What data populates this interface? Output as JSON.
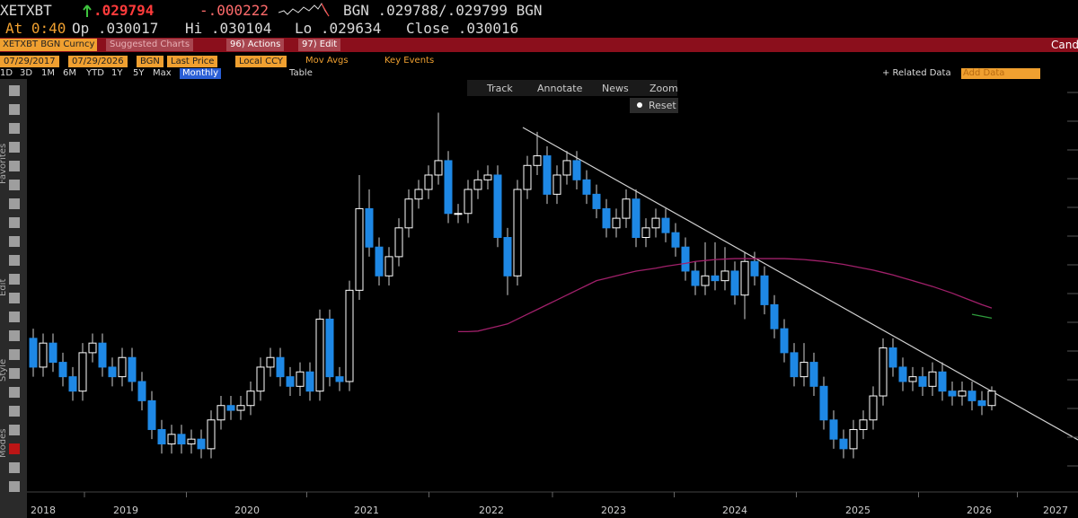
{
  "quote": {
    "ticker": "XETXBT",
    "last": ".029794",
    "change": "-.000222",
    "bid_ask": "BGN .029788/.029799 BGN",
    "time": "At 0:40",
    "open": "Op .030017",
    "high": "Hi .030104",
    "low": "Lo .029634",
    "close": "Close .030016"
  },
  "menu": {
    "security": "XETXBT BGN Curncy",
    "suggested": "Suggested Charts",
    "actions": "96) Actions",
    "edit": "97) Edit",
    "right": "Cand"
  },
  "settings": {
    "start": "07/29/2017",
    "end": "07/29/2026",
    "source": "BGN",
    "field": "Last Price",
    "currency": "Local CCY",
    "mov_avgs": "Mov Avgs",
    "key_events": "Key Events"
  },
  "periods": [
    "1D",
    "3D",
    "1M",
    "6M",
    "YTD",
    "1Y",
    "5Y",
    "Max"
  ],
  "frequency": "Monthly",
  "table": "Table",
  "related": "+ Related Data",
  "add_data": "Add Data",
  "chart_tools": [
    "Track",
    "Annotate",
    "News",
    "Zoom"
  ],
  "reset": "Reset",
  "side_tabs": [
    "Favorites",
    "Edit",
    "Style",
    "Modes"
  ],
  "chart_data": {
    "type": "candlestick",
    "up_color": "#ffffff",
    "down_color": "#1e88e5",
    "ylim": [
      0.009,
      0.095
    ],
    "x_labels": [
      "2018",
      "2019",
      "2020",
      "2021",
      "2022",
      "2023",
      "2024",
      "2025",
      "2026",
      "2027"
    ],
    "ohlc": [
      [
        0.041,
        0.043,
        0.033,
        0.035
      ],
      [
        0.035,
        0.042,
        0.033,
        0.04
      ],
      [
        0.04,
        0.042,
        0.034,
        0.036
      ],
      [
        0.036,
        0.038,
        0.031,
        0.033
      ],
      [
        0.033,
        0.035,
        0.028,
        0.03
      ],
      [
        0.03,
        0.04,
        0.028,
        0.038
      ],
      [
        0.038,
        0.042,
        0.036,
        0.04
      ],
      [
        0.04,
        0.042,
        0.033,
        0.035
      ],
      [
        0.035,
        0.037,
        0.031,
        0.033
      ],
      [
        0.033,
        0.039,
        0.031,
        0.037
      ],
      [
        0.037,
        0.039,
        0.03,
        0.032
      ],
      [
        0.032,
        0.034,
        0.026,
        0.028
      ],
      [
        0.028,
        0.03,
        0.02,
        0.022
      ],
      [
        0.022,
        0.024,
        0.017,
        0.019
      ],
      [
        0.019,
        0.023,
        0.017,
        0.021
      ],
      [
        0.021,
        0.023,
        0.017,
        0.019
      ],
      [
        0.019,
        0.022,
        0.017,
        0.02
      ],
      [
        0.02,
        0.022,
        0.016,
        0.018
      ],
      [
        0.018,
        0.026,
        0.016,
        0.024
      ],
      [
        0.024,
        0.029,
        0.022,
        0.027
      ],
      [
        0.027,
        0.029,
        0.024,
        0.026
      ],
      [
        0.026,
        0.029,
        0.024,
        0.027
      ],
      [
        0.027,
        0.032,
        0.025,
        0.03
      ],
      [
        0.03,
        0.037,
        0.028,
        0.035
      ],
      [
        0.035,
        0.039,
        0.033,
        0.037
      ],
      [
        0.037,
        0.039,
        0.031,
        0.033
      ],
      [
        0.033,
        0.035,
        0.029,
        0.031
      ],
      [
        0.031,
        0.036,
        0.029,
        0.034
      ],
      [
        0.034,
        0.036,
        0.028,
        0.03
      ],
      [
        0.03,
        0.047,
        0.028,
        0.045
      ],
      [
        0.045,
        0.047,
        0.031,
        0.033
      ],
      [
        0.033,
        0.035,
        0.03,
        0.032
      ],
      [
        0.032,
        0.053,
        0.03,
        0.051
      ],
      [
        0.051,
        0.075,
        0.049,
        0.068
      ],
      [
        0.068,
        0.072,
        0.058,
        0.06
      ],
      [
        0.06,
        0.062,
        0.052,
        0.054
      ],
      [
        0.054,
        0.06,
        0.052,
        0.058
      ],
      [
        0.058,
        0.066,
        0.056,
        0.064
      ],
      [
        0.064,
        0.072,
        0.062,
        0.07
      ],
      [
        0.07,
        0.074,
        0.068,
        0.072
      ],
      [
        0.072,
        0.077,
        0.07,
        0.075
      ],
      [
        0.075,
        0.088,
        0.073,
        0.078
      ],
      [
        0.078,
        0.08,
        0.065,
        0.067
      ],
      [
        0.067,
        0.069,
        0.065,
        0.067
      ],
      [
        0.067,
        0.074,
        0.065,
        0.072
      ],
      [
        0.072,
        0.076,
        0.07,
        0.074
      ],
      [
        0.074,
        0.077,
        0.072,
        0.075
      ],
      [
        0.075,
        0.077,
        0.06,
        0.062
      ],
      [
        0.062,
        0.064,
        0.05,
        0.054
      ],
      [
        0.054,
        0.074,
        0.052,
        0.072
      ],
      [
        0.072,
        0.079,
        0.07,
        0.077
      ],
      [
        0.077,
        0.084,
        0.075,
        0.079
      ],
      [
        0.079,
        0.081,
        0.069,
        0.071
      ],
      [
        0.071,
        0.077,
        0.069,
        0.075
      ],
      [
        0.075,
        0.08,
        0.073,
        0.078
      ],
      [
        0.078,
        0.08,
        0.072,
        0.074
      ],
      [
        0.074,
        0.076,
        0.069,
        0.071
      ],
      [
        0.071,
        0.073,
        0.066,
        0.068
      ],
      [
        0.068,
        0.07,
        0.062,
        0.064
      ],
      [
        0.064,
        0.068,
        0.062,
        0.066
      ],
      [
        0.066,
        0.072,
        0.064,
        0.07
      ],
      [
        0.07,
        0.072,
        0.06,
        0.062
      ],
      [
        0.062,
        0.066,
        0.06,
        0.064
      ],
      [
        0.064,
        0.068,
        0.062,
        0.066
      ],
      [
        0.066,
        0.068,
        0.061,
        0.063
      ],
      [
        0.063,
        0.065,
        0.058,
        0.06
      ],
      [
        0.06,
        0.062,
        0.053,
        0.055
      ],
      [
        0.055,
        0.057,
        0.05,
        0.052
      ],
      [
        0.052,
        0.061,
        0.05,
        0.054
      ],
      [
        0.054,
        0.061,
        0.051,
        0.053
      ],
      [
        0.053,
        0.06,
        0.051,
        0.055
      ],
      [
        0.055,
        0.057,
        0.048,
        0.05
      ],
      [
        0.05,
        0.059,
        0.045,
        0.057
      ],
      [
        0.057,
        0.059,
        0.052,
        0.054
      ],
      [
        0.054,
        0.056,
        0.046,
        0.048
      ],
      [
        0.048,
        0.05,
        0.041,
        0.043
      ],
      [
        0.043,
        0.045,
        0.036,
        0.038
      ],
      [
        0.038,
        0.04,
        0.031,
        0.033
      ],
      [
        0.033,
        0.04,
        0.031,
        0.036
      ],
      [
        0.036,
        0.038,
        0.029,
        0.031
      ],
      [
        0.031,
        0.033,
        0.022,
        0.024
      ],
      [
        0.024,
        0.026,
        0.018,
        0.02
      ],
      [
        0.02,
        0.022,
        0.016,
        0.018
      ],
      [
        0.018,
        0.024,
        0.016,
        0.022
      ],
      [
        0.022,
        0.026,
        0.02,
        0.024
      ],
      [
        0.024,
        0.031,
        0.022,
        0.029
      ],
      [
        0.029,
        0.041,
        0.027,
        0.039
      ],
      [
        0.039,
        0.041,
        0.033,
        0.035
      ],
      [
        0.035,
        0.037,
        0.03,
        0.032
      ],
      [
        0.032,
        0.035,
        0.03,
        0.033
      ],
      [
        0.033,
        0.035,
        0.029,
        0.031
      ],
      [
        0.031,
        0.036,
        0.029,
        0.034
      ],
      [
        0.034,
        0.036,
        0.028,
        0.03
      ],
      [
        0.03,
        0.032,
        0.027,
        0.029
      ],
      [
        0.029,
        0.032,
        0.027,
        0.03
      ],
      [
        0.03,
        0.032,
        0.026,
        0.028
      ],
      [
        0.028,
        0.03,
        0.025,
        0.027
      ],
      [
        0.027,
        0.031,
        0.026,
        0.03
      ]
    ],
    "moving_averages": [
      {
        "color": "#a0206a",
        "values": [
          null,
          null,
          null,
          null,
          null,
          null,
          null,
          null,
          null,
          null,
          null,
          null,
          null,
          null,
          null,
          null,
          null,
          null,
          null,
          null,
          null,
          null,
          null,
          null,
          null,
          null,
          null,
          null,
          null,
          null,
          null,
          null,
          null,
          null,
          null,
          null,
          null,
          null,
          null,
          null,
          null,
          null,
          null,
          0.0424,
          0.0424,
          0.0425,
          0.043,
          0.0435,
          0.044,
          0.045,
          0.046,
          0.047,
          0.048,
          0.049,
          0.05,
          0.051,
          0.052,
          0.053,
          0.0535,
          0.054,
          0.0545,
          0.055,
          0.0553,
          0.0556,
          0.056,
          0.0563,
          0.0566,
          0.057,
          0.0572,
          0.0574,
          0.0575,
          0.0576,
          0.0576,
          0.0576,
          0.0576,
          0.0576,
          0.0576,
          0.0575,
          0.0574,
          0.0572,
          0.057,
          0.0567,
          0.0564,
          0.056,
          0.0556,
          0.0552,
          0.0547,
          0.0542,
          0.0536,
          0.053,
          0.0524,
          0.0518,
          0.0511,
          0.0504,
          0.0496,
          0.0488,
          0.048,
          0.0473
        ]
      },
      {
        "color": "#2e9b3c",
        "values": [
          null,
          null,
          null,
          null,
          null,
          null,
          null,
          null,
          null,
          null,
          null,
          null,
          null,
          null,
          null,
          null,
          null,
          null,
          null,
          null,
          null,
          null,
          null,
          null,
          null,
          null,
          null,
          null,
          null,
          null,
          null,
          null,
          null,
          null,
          null,
          null,
          null,
          null,
          null,
          null,
          null,
          null,
          null,
          null,
          null,
          null,
          null,
          null,
          null,
          null,
          null,
          null,
          null,
          null,
          null,
          null,
          null,
          null,
          null,
          null,
          null,
          null,
          null,
          null,
          null,
          null,
          null,
          null,
          null,
          null,
          null,
          null,
          null,
          null,
          null,
          null,
          null,
          null,
          null,
          null,
          null,
          null,
          null,
          null,
          null,
          null,
          null,
          null,
          null,
          null,
          null,
          null,
          null,
          null,
          null,
          0.046,
          0.0456,
          0.0452
        ]
      }
    ]
  }
}
